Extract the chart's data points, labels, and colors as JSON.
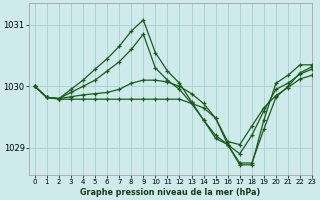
{
  "title": "Graphe pression niveau de la mer (hPa)",
  "background_color": "#ceeaea",
  "grid_color": "#aad4d4",
  "line_color": "#1a5c1a",
  "xlim": [
    -0.5,
    23
  ],
  "ylim": [
    1028.55,
    1031.35
  ],
  "yticks": [
    1029,
    1030,
    1031
  ],
  "xticks": [
    0,
    1,
    2,
    3,
    4,
    5,
    6,
    7,
    8,
    9,
    10,
    11,
    12,
    13,
    14,
    15,
    16,
    17,
    18,
    19,
    20,
    21,
    22,
    23
  ],
  "series": [
    [
      1030.0,
      1029.82,
      1029.8,
      1029.95,
      1030.1,
      1030.28,
      1030.45,
      1030.65,
      1030.9,
      1031.08,
      1030.55,
      1030.25,
      1030.05,
      1029.75,
      1029.45,
      1029.15,
      1029.05,
      1028.72,
      1028.72,
      1029.45,
      1030.05,
      1030.18,
      1030.35,
      1030.35
    ],
    [
      1030.0,
      1029.82,
      1029.8,
      1029.9,
      1030.0,
      1030.1,
      1030.25,
      1030.4,
      1030.6,
      1030.85,
      1030.3,
      1030.1,
      1029.95,
      1029.72,
      1029.45,
      1029.2,
      1029.05,
      1028.9,
      1029.2,
      1029.6,
      1029.95,
      1030.05,
      1030.2,
      1030.28
    ],
    [
      1030.0,
      1029.82,
      1029.8,
      1029.83,
      1029.86,
      1029.88,
      1029.9,
      1029.95,
      1030.05,
      1030.1,
      1030.1,
      1030.07,
      1030.0,
      1029.88,
      1029.72,
      1029.48,
      1029.1,
      1029.05,
      1029.35,
      1029.65,
      1029.85,
      1029.98,
      1030.12,
      1030.18
    ],
    [
      1030.0,
      1029.82,
      1029.79,
      1029.79,
      1029.79,
      1029.79,
      1029.79,
      1029.79,
      1029.79,
      1029.79,
      1029.79,
      1029.79,
      1029.79,
      1029.72,
      1029.65,
      1029.48,
      1029.05,
      1028.75,
      1028.75,
      1029.3,
      1029.82,
      1030.0,
      1030.22,
      1030.32
    ]
  ]
}
